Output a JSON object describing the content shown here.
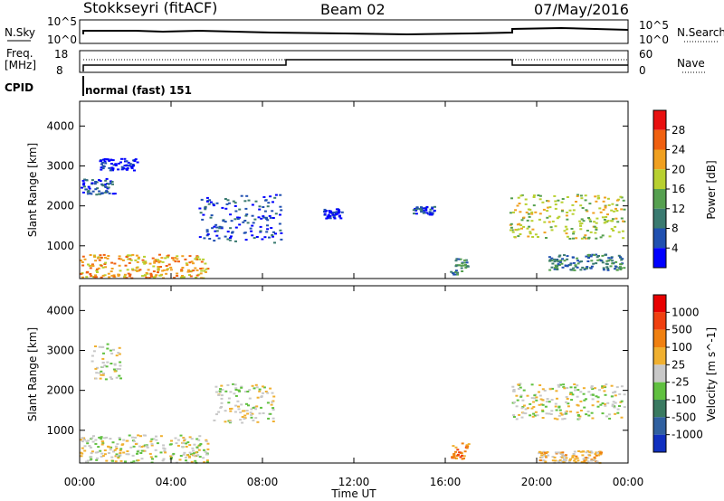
{
  "header": {
    "station": "Stokkseyri (fitACF)",
    "beam": "Beam 02",
    "date": "07/May/2016"
  },
  "labels": {
    "nsky": "N.Sky",
    "nsearch": "N.Search",
    "freq": "Freq.",
    "mhz": "[MHz]",
    "nave": "Nave",
    "cpid": "CPID",
    "cpid_value": "normal (fast) 151",
    "nsky_top": "10^5",
    "nsky_bottom": "10^0",
    "nsearch_top": "10^5",
    "nsearch_bottom": "10^0",
    "freq_top": "18",
    "freq_bottom": "8",
    "nave_top": "60",
    "nave_bottom": "0"
  },
  "chart_data": [
    {
      "type": "heatmap",
      "ylabel": "Slant Range [km]",
      "xlabel": "Time UT",
      "x_ticks": [
        "00:00",
        "04:00",
        "08:00",
        "12:00",
        "16:00",
        "20:00",
        "00:00"
      ],
      "y_ticks": [
        1000,
        2000,
        3000,
        4000
      ],
      "ylim": [
        180,
        4620
      ],
      "xlim": [
        0,
        24
      ],
      "colorbar": {
        "label": "Power [dB]",
        "ticks": [
          "4",
          "8",
          "12",
          "16",
          "20",
          "24",
          "28"
        ],
        "colors": [
          "#0000ff",
          "#2050b0",
          "#3a7a70",
          "#56a050",
          "#b8d030",
          "#f0a020",
          "#f06010",
          "#e81010"
        ]
      },
      "regions": [
        {
          "t0": 0.0,
          "t1": 5.6,
          "r0": 200,
          "r1": 800,
          "level": 5
        },
        {
          "t0": 0.0,
          "t1": 1.5,
          "r0": 2300,
          "r1": 2700,
          "level": 1
        },
        {
          "t0": 0.8,
          "t1": 2.5,
          "r0": 2900,
          "r1": 3200,
          "level": 0
        },
        {
          "t0": 5.2,
          "t1": 8.8,
          "r0": 1100,
          "r1": 2300,
          "level": 1
        },
        {
          "t0": 10.5,
          "t1": 11.5,
          "r0": 1700,
          "r1": 1950,
          "level": 0
        },
        {
          "t0": 14.5,
          "t1": 15.5,
          "r0": 1800,
          "r1": 2000,
          "level": 1
        },
        {
          "t0": 16.2,
          "t1": 17.0,
          "r0": 300,
          "r1": 700,
          "level": 2
        },
        {
          "t0": 18.8,
          "t1": 23.8,
          "r0": 1200,
          "r1": 2300,
          "level": 4
        },
        {
          "t0": 20.5,
          "t1": 23.8,
          "r0": 400,
          "r1": 800,
          "level": 2
        }
      ]
    },
    {
      "type": "heatmap",
      "ylabel": "Slant Range [km]",
      "xlabel": "Time UT",
      "x_ticks": [
        "00:00",
        "04:00",
        "08:00",
        "12:00",
        "16:00",
        "20:00",
        "00:00"
      ],
      "y_ticks": [
        1000,
        2000,
        3000,
        4000
      ],
      "ylim": [
        180,
        4620
      ],
      "xlim": [
        0,
        24
      ],
      "colorbar": {
        "label": "Velocity [m s^-1]",
        "ticks": [
          "1000",
          "500",
          "100",
          "25",
          "-25",
          "-100",
          "-500",
          "-1000"
        ],
        "colors": [
          "#1030c0",
          "#3060a0",
          "#3a7a60",
          "#60c040",
          "#c8c8c8",
          "#f0b030",
          "#f08010",
          "#f04010",
          "#e80000"
        ]
      },
      "regions": [
        {
          "t0": 0.0,
          "t1": 5.6,
          "r0": 200,
          "r1": 900,
          "level": 4
        },
        {
          "t0": 0.5,
          "t1": 1.8,
          "r0": 2300,
          "r1": 3200,
          "level": 4
        },
        {
          "t0": 5.8,
          "t1": 8.5,
          "r0": 1200,
          "r1": 2200,
          "level": 4
        },
        {
          "t0": 16.2,
          "t1": 17.0,
          "r0": 300,
          "r1": 700,
          "level": 6
        },
        {
          "t0": 18.9,
          "t1": 23.8,
          "r0": 1300,
          "r1": 2200,
          "level": 4
        },
        {
          "t0": 20.0,
          "t1": 22.8,
          "r0": 200,
          "r1": 500,
          "level": 5
        }
      ]
    }
  ]
}
